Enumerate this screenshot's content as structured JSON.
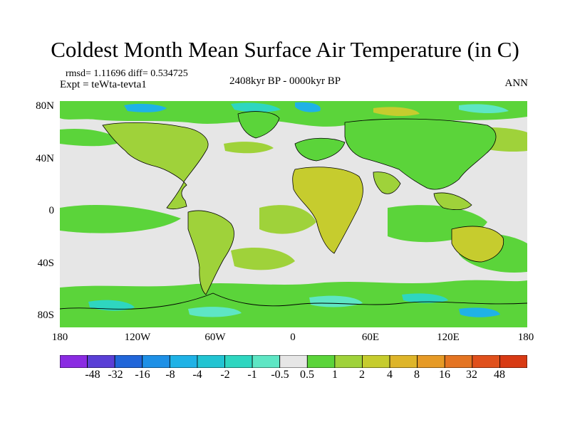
{
  "title": "Coldest Month Mean Surface Air Temperature (in C)",
  "stats": "rmsd= 1.11696 diff= 0.534725",
  "experiment": "Expt = teWta-tevta1",
  "period": "2408kyr BP - 0000kyr BP",
  "season": "ANN",
  "lat_labels": [
    "80N",
    "40N",
    "0",
    "40S",
    "80S"
  ],
  "lon_labels": [
    "180",
    "120W",
    "60W",
    "0",
    "60E",
    "120E",
    "180"
  ],
  "legend": {
    "levels": [
      "-48",
      "-32",
      "-16",
      "-8",
      "-4",
      "-2",
      "-1",
      "-0.5",
      "0.5",
      "1",
      "2",
      "4",
      "8",
      "16",
      "32",
      "48"
    ],
    "colors": [
      "#8a2be2",
      "#5a3fd6",
      "#2166d9",
      "#1e90e6",
      "#1fb2e6",
      "#22c4d2",
      "#2ed6c0",
      "#5ee6c4",
      "#e6e6e6",
      "#5bd43a",
      "#9fd23a",
      "#c6cc2e",
      "#deb52a",
      "#e69a26",
      "#e47422",
      "#e0501c",
      "#d83a14"
    ]
  },
  "map_colors": {
    "background": "#e6e6e6",
    "green": "#5bd43a",
    "yellowgreen": "#9fd23a",
    "olive": "#c6cc2e",
    "cyan": "#2ed6c0",
    "lightcyan": "#5ee6c4",
    "blue": "#1fb2e6",
    "coast": "#000000"
  }
}
